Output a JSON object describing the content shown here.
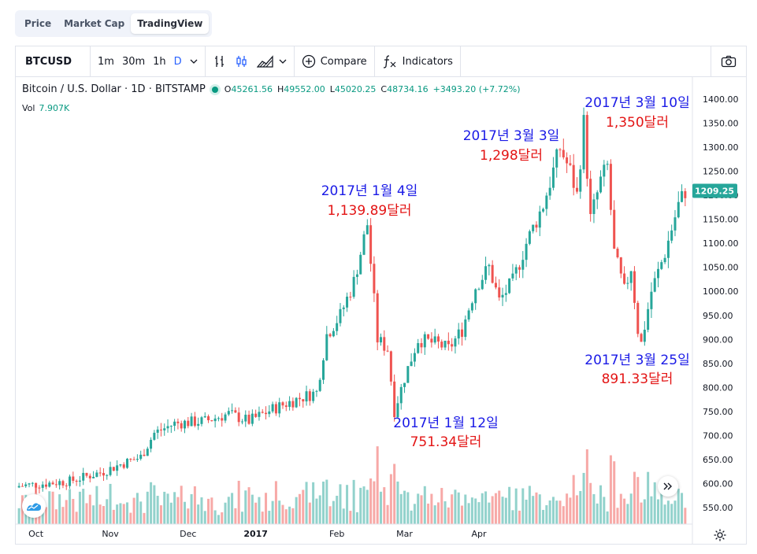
{
  "tabs": [
    "Price",
    "Market Cap",
    "TradingView"
  ],
  "toolbar": {
    "symbol": "BTCUSD",
    "intervals": [
      "1m",
      "30m",
      "1h",
      "D"
    ],
    "compare": "Compare",
    "indicators": "Indicators"
  },
  "legend": {
    "title": "Bitcoin / U.S. Dollar · 1D · BITSTAMP",
    "o_label": "O",
    "o_value": "45261.56",
    "h_label": "H",
    "h_value": "49552.00",
    "l_label": "L",
    "l_value": "45020.25",
    "c_label": "C",
    "c_value": "48734.16",
    "change": "+3493.20 (+7.72%)",
    "vol_label": "Vol",
    "vol_value": "7.907K"
  },
  "price_tag": "1209.25",
  "colors": {
    "up": "#26a69a",
    "down": "#ef5350",
    "accent": "#2962ff",
    "date_note": "#1a1ae6",
    "price_note": "#e31414"
  },
  "icons": [
    "chevron-down-icon",
    "bar-chart-icon",
    "candle-chart-icon",
    "area-chart-icon",
    "plus-circle-icon",
    "fx-icon",
    "camera-icon",
    "logo-icon",
    "settings-icon",
    "double-chevron-right-icon"
  ],
  "annotations": [
    {
      "date": "2017년 1월 4일",
      "price": "1,139.89달러"
    },
    {
      "date": "2017년 1월 12일",
      "price": "751.34달러"
    },
    {
      "date": "2017년 3월 3일",
      "price": "1,298달러"
    },
    {
      "date": "2017년 3월 10일",
      "price": "1,350달러"
    },
    {
      "date": "2017년 3월 25일",
      "price": "891.33달러"
    }
  ],
  "chart_data": {
    "type": "candlestick",
    "y_ticks": [
      "1400.00",
      "1350.00",
      "1300.00",
      "1250.00",
      "1200.00",
      "1150.00",
      "1100.00",
      "1050.00",
      "1000.00",
      "950.00",
      "900.00",
      "850.00",
      "800.00",
      "750.00",
      "700.00",
      "650.00",
      "600.00",
      "550.00"
    ],
    "x_ticks": [
      "Oct",
      "Nov",
      "Dec",
      "2017",
      "Feb",
      "Mar",
      "Apr"
    ],
    "ylim": [
      520,
      1410
    ],
    "anchors": [
      [
        0,
        595
      ],
      [
        15,
        605
      ],
      [
        25,
        625
      ],
      [
        30,
        640
      ],
      [
        36,
        655
      ],
      [
        40,
        705
      ],
      [
        46,
        725
      ],
      [
        55,
        730
      ],
      [
        62,
        745
      ],
      [
        68,
        730
      ],
      [
        75,
        755
      ],
      [
        82,
        775
      ],
      [
        88,
        790
      ],
      [
        91,
        910
      ],
      [
        95,
        950
      ],
      [
        99,
        1020
      ],
      [
        103,
        1139.89
      ],
      [
        106,
        900
      ],
      [
        109,
        880
      ],
      [
        111,
        751.34
      ],
      [
        114,
        820
      ],
      [
        118,
        900
      ],
      [
        124,
        890
      ],
      [
        127,
        880
      ],
      [
        131,
        920
      ],
      [
        135,
        1010
      ],
      [
        139,
        1050
      ],
      [
        142,
        980
      ],
      [
        146,
        1020
      ],
      [
        150,
        1100
      ],
      [
        155,
        1180
      ],
      [
        160,
        1298
      ],
      [
        163,
        1250
      ],
      [
        165,
        1200
      ],
      [
        167,
        1350
      ],
      [
        169,
        1150
      ],
      [
        172,
        1230
      ],
      [
        174,
        1260
      ],
      [
        176,
        1080
      ],
      [
        179,
        1000
      ],
      [
        181,
        1050
      ],
      [
        183,
        920
      ],
      [
        184,
        891.33
      ],
      [
        187,
        1000
      ],
      [
        191,
        1080
      ],
      [
        195,
        1180
      ],
      [
        197,
        1209.25
      ]
    ],
    "count": 198
  }
}
